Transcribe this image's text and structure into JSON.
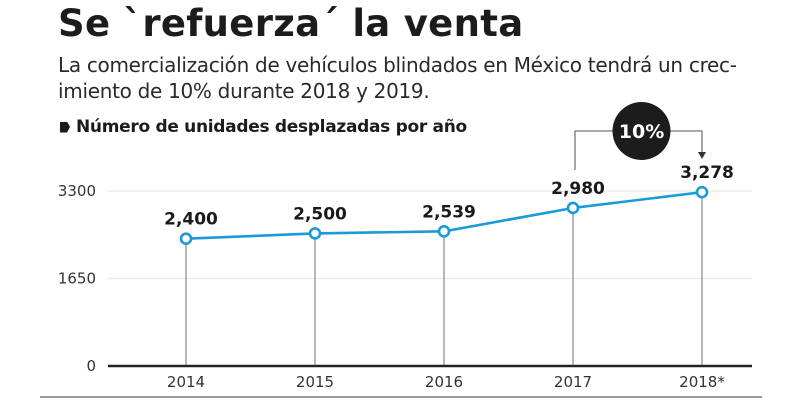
{
  "header": {
    "title": "Se `refuerza´ la venta",
    "subtitle": "La comercialización de vehículos blindados en México tendrá un crec-imiento de 10% durante 2018 y 2019."
  },
  "legend": {
    "label": "Número de unidades desplazadas por año"
  },
  "colors": {
    "line": "#1a9ad6",
    "text": "#1a1a1a",
    "badge": "#1c1c1c",
    "grid": "#e6e6e6",
    "axis": "#222222",
    "drop_line": "#888888"
  },
  "chart_data": {
    "type": "line",
    "title": "Se `refuerza´ la venta",
    "subtitle": "La comercialización de vehículos blindados en México tendrá un crecimiento de 10% durante 2018 y 2019.",
    "xlabel": "",
    "ylabel": "",
    "categories": [
      "2014",
      "2015",
      "2016",
      "2017",
      "2018*"
    ],
    "series": [
      {
        "name": "Número de unidades desplazadas por año",
        "values": [
          2400,
          2500,
          2539,
          2980,
          3278
        ],
        "labels": [
          "2,400",
          "2,500",
          "2,539",
          "2,980",
          "3,278"
        ]
      }
    ],
    "ylim": [
      0,
      3300
    ],
    "yticks": [
      0,
      1650,
      3300
    ],
    "ytick_labels": [
      "0",
      "1650",
      "3300"
    ],
    "grid": true,
    "legend_position": "top-left",
    "annotations": [
      {
        "text": "10%",
        "from": "2017",
        "to": "2018*",
        "type": "growth-bracket"
      }
    ]
  }
}
